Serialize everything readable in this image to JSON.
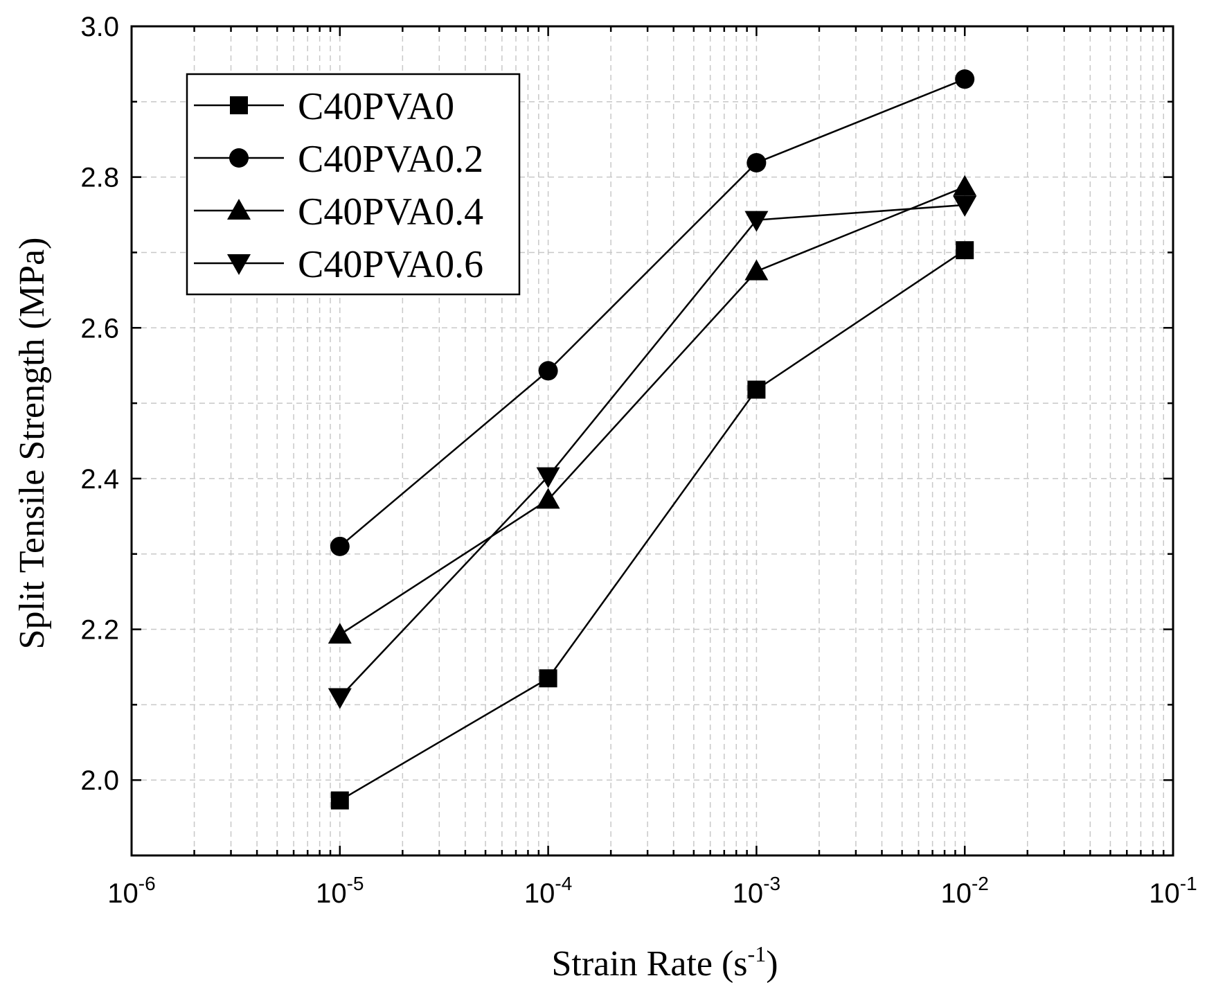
{
  "chart_data": {
    "type": "line",
    "title": "",
    "xlabel": "Strain Rate (s",
    "xlabel_sup": "-1",
    "xlabel_end": ")",
    "ylabel": "Split Tensile Strength (MPa)",
    "xscale": "log",
    "xlim_exp": [
      -6,
      -1
    ],
    "ylim": [
      1.9,
      3.0
    ],
    "grid": true,
    "legend_position": "top-left",
    "x_ticks": [
      {
        "base": "10",
        "exp": "-6",
        "value": 1e-06
      },
      {
        "base": "10",
        "exp": "-5",
        "value": 1e-05
      },
      {
        "base": "10",
        "exp": "-4",
        "value": 0.0001
      },
      {
        "base": "10",
        "exp": "-3",
        "value": 0.001
      },
      {
        "base": "10",
        "exp": "-2",
        "value": 0.01
      },
      {
        "base": "10",
        "exp": "-1",
        "value": 0.1
      }
    ],
    "y_ticks": [
      {
        "label": "2.0",
        "value": 2.0
      },
      {
        "label": "2.2",
        "value": 2.2
      },
      {
        "label": "2.4",
        "value": 2.4
      },
      {
        "label": "2.6",
        "value": 2.6
      },
      {
        "label": "2.8",
        "value": 2.8
      },
      {
        "label": "3.0",
        "value": 3.0
      }
    ],
    "x": [
      1e-05,
      0.0001,
      0.001,
      0.01
    ],
    "series": [
      {
        "name": "C40PVA0",
        "marker": "square",
        "values": [
          1.973,
          2.135,
          2.518,
          2.703
        ]
      },
      {
        "name": "C40PVA0.2",
        "marker": "circle",
        "values": [
          2.31,
          2.543,
          2.819,
          2.93
        ]
      },
      {
        "name": "C40PVA0.4",
        "marker": "triangle-up",
        "values": [
          2.193,
          2.372,
          2.675,
          2.787
        ]
      },
      {
        "name": "C40PVA0.6",
        "marker": "triangle-down",
        "values": [
          2.11,
          2.403,
          2.743,
          2.763
        ]
      }
    ]
  }
}
